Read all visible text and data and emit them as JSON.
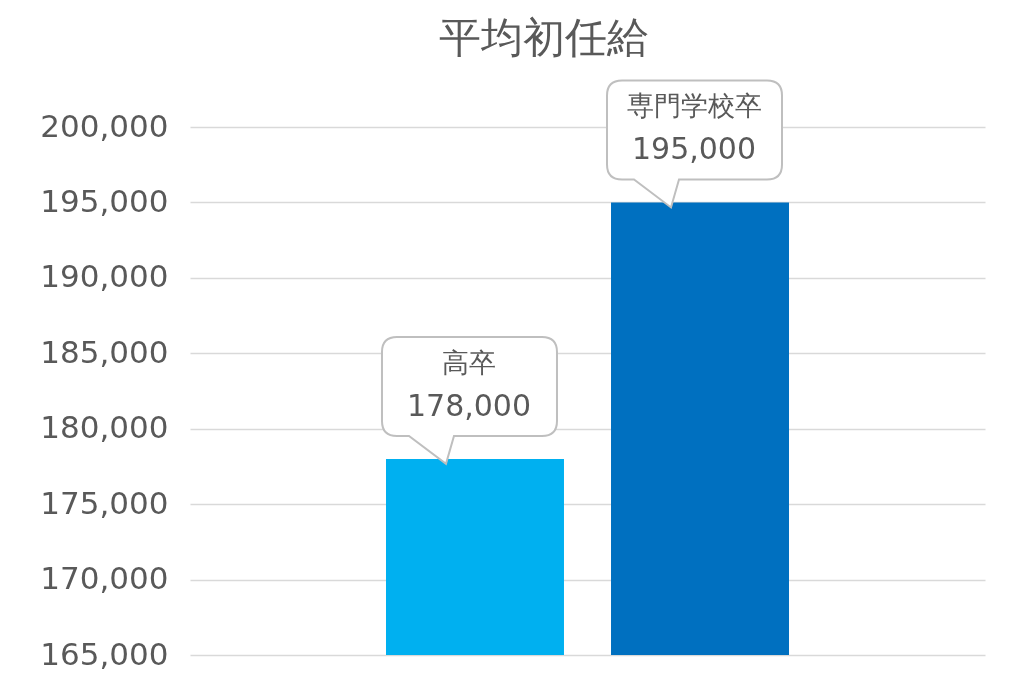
{
  "chart_data": {
    "type": "bar",
    "title": "平均初任給",
    "categories": [
      null
    ],
    "series": [
      {
        "name": "高卒",
        "color": "#00b0f0",
        "values": [
          178000
        ],
        "value_labels": [
          "178,000"
        ]
      },
      {
        "name": "専門学校卒",
        "color": "#0070c0",
        "values": [
          195000
        ],
        "value_labels": [
          "195,000"
        ]
      }
    ],
    "ylim": [
      165000,
      200000
    ],
    "yticks": [
      {
        "value": 165000,
        "label": "165,000"
      },
      {
        "value": 170000,
        "label": "170,000"
      },
      {
        "value": 175000,
        "label": "175,000"
      },
      {
        "value": 180000,
        "label": "180,000"
      },
      {
        "value": 185000,
        "label": "185,000"
      },
      {
        "value": 190000,
        "label": "190,000"
      },
      {
        "value": 195000,
        "label": "195,000"
      },
      {
        "value": 200000,
        "label": "200,000"
      }
    ],
    "grid": "y",
    "legend": false,
    "tick_labels": "y"
  }
}
